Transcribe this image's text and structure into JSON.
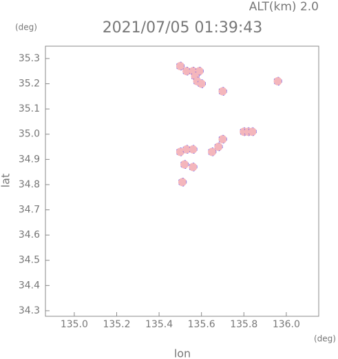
{
  "chart_data": {
    "type": "scatter",
    "title": "2021/07/05 01:39:43",
    "subtitle": "ALT(km) 2.0",
    "xlabel": "lon",
    "ylabel": "lat",
    "xunit": "(deg)",
    "yunit": "(deg)",
    "color": "#f4b6bc",
    "edge_color": "#5a4cf0",
    "x": [
      135.5,
      135.53,
      135.56,
      135.59,
      135.57,
      135.58,
      135.6,
      135.7,
      135.96,
      135.8,
      135.82,
      135.84,
      135.7,
      135.68,
      135.65,
      135.5,
      135.53,
      135.56,
      135.52,
      135.56,
      135.51
    ],
    "y": [
      35.27,
      35.25,
      35.25,
      35.25,
      35.23,
      35.21,
      35.2,
      35.17,
      35.21,
      35.01,
      35.01,
      35.01,
      34.98,
      34.95,
      34.93,
      34.93,
      34.94,
      34.94,
      34.88,
      34.87,
      34.81
    ],
    "xlim": [
      134.864,
      136.153
    ],
    "ylim": [
      34.278,
      35.349
    ],
    "xticks": [
      {
        "value": 135.0,
        "label": "135.0"
      },
      135.2,
      135.4,
      135.6,
      135.8,
      {
        "value": 136.0,
        "label": "136.0"
      }
    ],
    "yticks": [
      35.3,
      35.2,
      35.1,
      {
        "value": 35.0,
        "label": "35.0"
      },
      34.9,
      34.8,
      34.7,
      34.6,
      34.5,
      34.4,
      34.3
    ]
  }
}
